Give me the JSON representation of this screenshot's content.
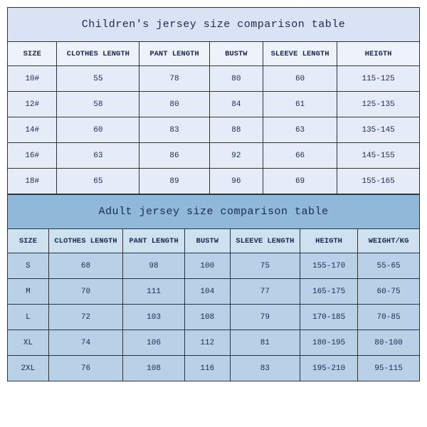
{
  "children_table": {
    "title": "Children's jersey size comparison table",
    "title_bg": "#d9e3f3",
    "header_bg": "#eef2fa",
    "cell_bg": "#e6ecf7",
    "border_color": "#333333",
    "text_color": "#1a2a55",
    "title_fontsize": 15,
    "header_fontsize": 10.5,
    "cell_fontsize": 11,
    "columns": [
      "SIZE",
      "CLOTHES LENGTH",
      "PANT LENGTH",
      "BUSTW",
      "SLEEVE LENGTH",
      "HEIGTH"
    ],
    "col_widths_pct": [
      12,
      20,
      17,
      13,
      18,
      20
    ],
    "rows": [
      [
        "10#",
        "55",
        "78",
        "80",
        "60",
        "115-125"
      ],
      [
        "12#",
        "58",
        "80",
        "84",
        "61",
        "125-135"
      ],
      [
        "14#",
        "60",
        "83",
        "88",
        "63",
        "135-145"
      ],
      [
        "16#",
        "63",
        "86",
        "92",
        "66",
        "145-155"
      ],
      [
        "18#",
        "65",
        "89",
        "96",
        "69",
        "155-165"
      ]
    ]
  },
  "adult_table": {
    "title": "Adult jersey size comparison table",
    "title_bg": "#8fb8d9",
    "header_bg": "#cfe0ee",
    "cell_bg": "#b8d1e6",
    "border_color": "#333333",
    "text_color": "#1a2a55",
    "title_fontsize": 15,
    "header_fontsize": 10.5,
    "cell_fontsize": 11,
    "columns": [
      "SIZE",
      "CLOTHES LENGTH",
      "PANT LENGTH",
      "BUSTW",
      "SLEEVE LENGTH",
      "HEIGTH",
      "WEIGHT/KG"
    ],
    "col_widths_pct": [
      10,
      18,
      15,
      11,
      17,
      14,
      15
    ],
    "rows": [
      [
        "S",
        "68",
        "98",
        "100",
        "75",
        "155-170",
        "55-65"
      ],
      [
        "M",
        "70",
        "111",
        "104",
        "77",
        "165-175",
        "60-75"
      ],
      [
        "L",
        "72",
        "103",
        "108",
        "79",
        "170-185",
        "70-85"
      ],
      [
        "XL",
        "74",
        "106",
        "112",
        "81",
        "180-195",
        "80-100"
      ],
      [
        "2XL",
        "76",
        "108",
        "116",
        "83",
        "195-210",
        "95-115"
      ]
    ]
  }
}
